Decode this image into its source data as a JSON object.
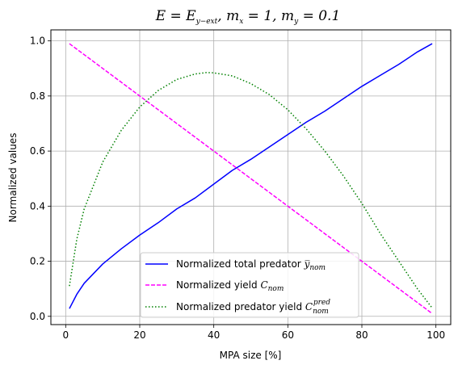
{
  "chart_data": {
    "type": "line",
    "title": "E = E_{y-ext},  m_x = 1,  m_y = 0.1",
    "xlabel": "MPA size [%]",
    "ylabel": "Normalized values",
    "xlim": [
      -4,
      104
    ],
    "ylim": [
      -0.03,
      1.04
    ],
    "x_ticks": [
      0,
      20,
      40,
      60,
      80,
      100
    ],
    "y_ticks": [
      0.0,
      0.2,
      0.4,
      0.6,
      0.8,
      1.0
    ],
    "x_tick_labels": [
      "0",
      "20",
      "40",
      "60",
      "80",
      "100"
    ],
    "y_tick_labels": [
      "0.0",
      "0.2",
      "0.4",
      "0.6",
      "0.8",
      "1.0"
    ],
    "grid": true,
    "legend_position": "lower-center",
    "series": [
      {
        "name": "Normalized total predator ȳ_nom",
        "color": "#0000ff",
        "style": "solid",
        "x": [
          1,
          3,
          5,
          10,
          15,
          20,
          25,
          30,
          35,
          40,
          45,
          50,
          55,
          60,
          65,
          70,
          75,
          80,
          85,
          90,
          95,
          99
        ],
        "y": [
          0.028,
          0.08,
          0.12,
          0.19,
          0.245,
          0.295,
          0.34,
          0.39,
          0.43,
          0.48,
          0.53,
          0.57,
          0.615,
          0.66,
          0.705,
          0.745,
          0.79,
          0.835,
          0.875,
          0.915,
          0.96,
          0.99
        ]
      },
      {
        "name": "Normalized yield C_nom",
        "color": "#ff00ff",
        "style": "dashed",
        "x": [
          1,
          99
        ],
        "y": [
          0.99,
          0.01
        ]
      },
      {
        "name": "Normalized predator yield C_nom^pred",
        "color": "#008000",
        "style": "dotted",
        "x": [
          1,
          3,
          5,
          10,
          15,
          20,
          25,
          30,
          35,
          38,
          40,
          45,
          50,
          55,
          60,
          65,
          70,
          75,
          80,
          85,
          90,
          95,
          99
        ],
        "y": [
          0.11,
          0.28,
          0.39,
          0.56,
          0.675,
          0.76,
          0.82,
          0.86,
          0.88,
          0.885,
          0.884,
          0.873,
          0.845,
          0.805,
          0.75,
          0.68,
          0.6,
          0.51,
          0.41,
          0.3,
          0.2,
          0.1,
          0.03
        ]
      }
    ]
  }
}
